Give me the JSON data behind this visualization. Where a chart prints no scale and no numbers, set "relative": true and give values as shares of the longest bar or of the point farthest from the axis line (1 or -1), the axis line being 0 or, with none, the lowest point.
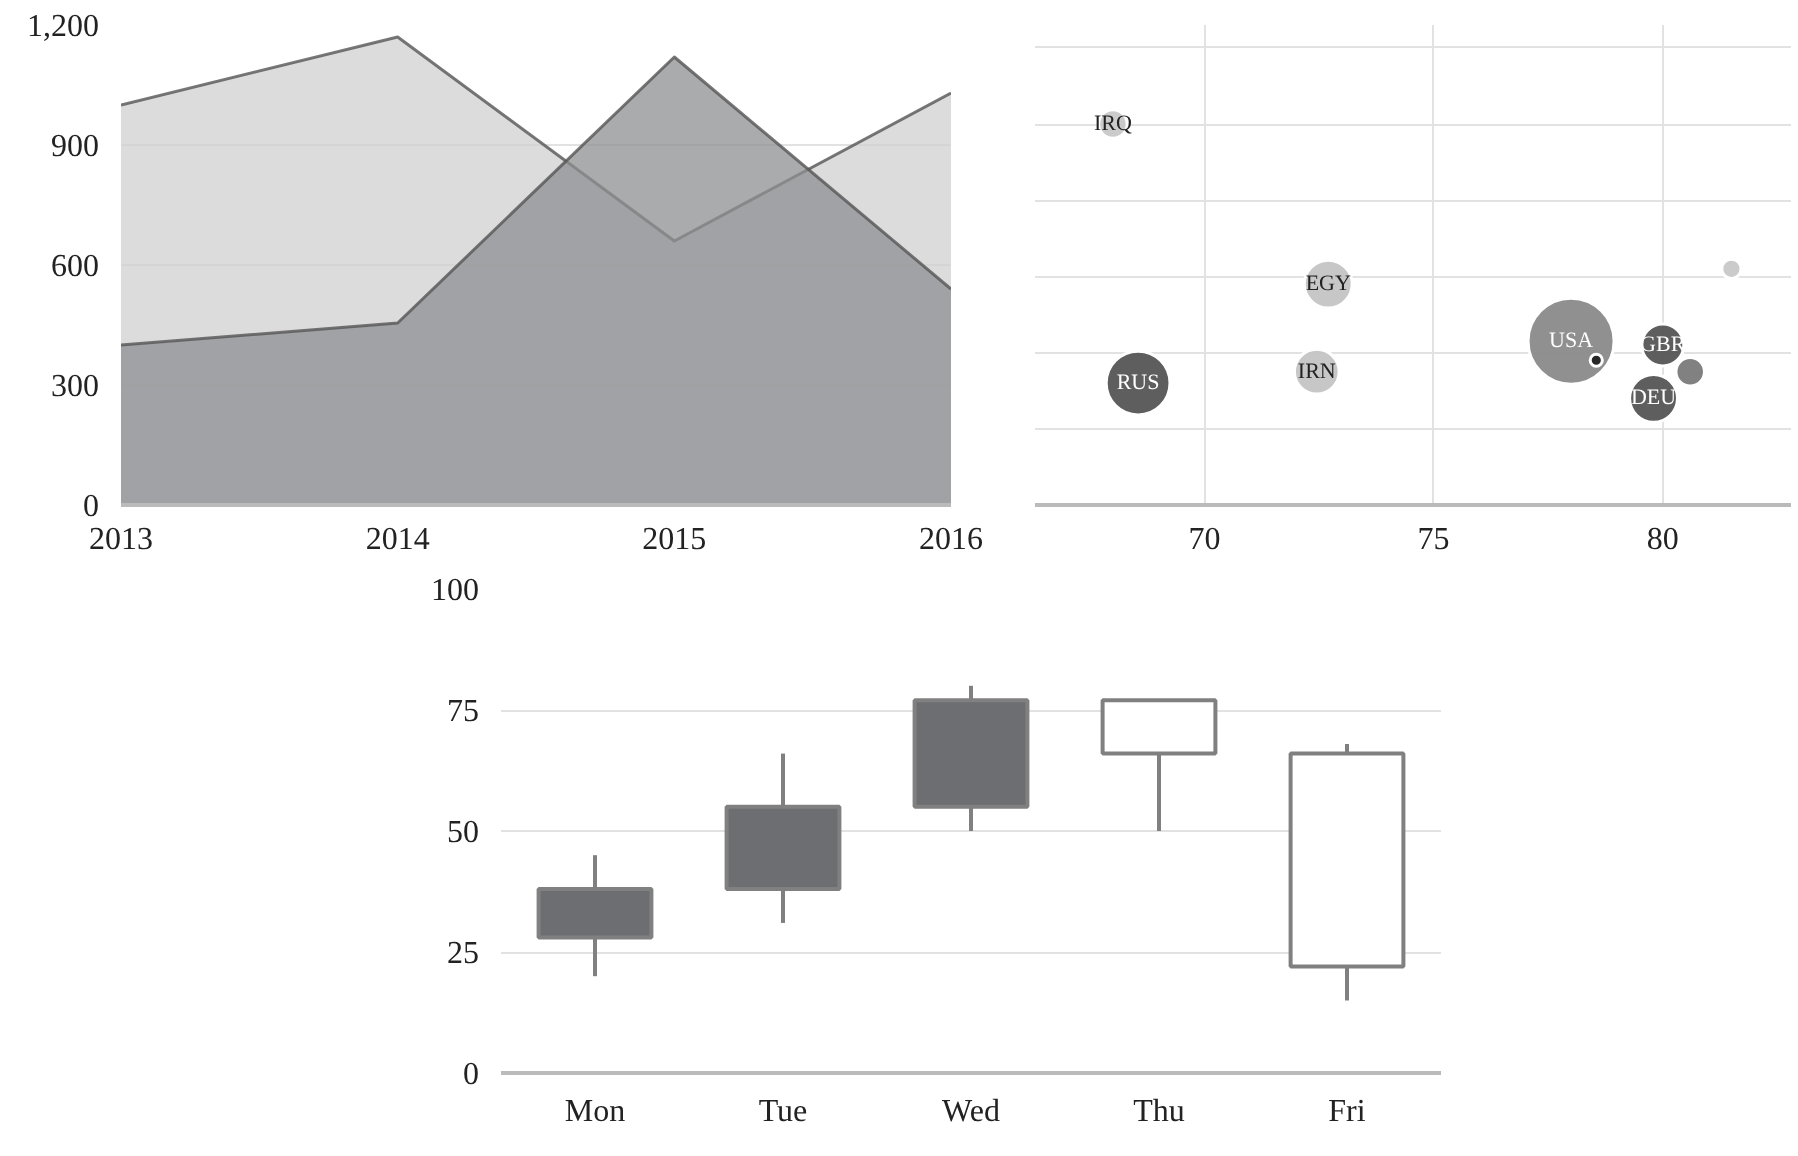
{
  "chart_data": [
    {
      "type": "area",
      "x": [
        2013,
        2014,
        2015,
        2016
      ],
      "xlim": [
        2013,
        2016
      ],
      "xticks": [
        2013,
        2014,
        2015,
        2016
      ],
      "ylim": [
        0,
        1200
      ],
      "yticks": [
        0,
        300,
        600,
        900,
        {
          "value": 1200,
          "label": "1,200"
        }
      ],
      "grid": "y",
      "series": [
        {
          "color": "#d0d0d2",
          "values": [
            1000,
            1170,
            660,
            1030
          ]
        },
        {
          "color": "#8e8f92",
          "values": [
            400,
            455,
            1120,
            540
          ]
        }
      ]
    },
    {
      "type": "bubble",
      "relative": true,
      "x": [
        68.0,
        72.7,
        68.55,
        72.45,
        78.0,
        78.55,
        80.0,
        80.6,
        79.8,
        81.5
      ],
      "values": [
        1.0,
        0.58,
        0.32,
        0.35,
        0.43,
        0.38,
        0.42,
        0.35,
        0.28,
        0.62
      ],
      "sizes": [
        0.11,
        0.31,
        0.55,
        0.27,
        1.0,
        0.02,
        0.24,
        0.11,
        0.31,
        0.05
      ],
      "colors": [
        "#c8c8c8",
        "#c4c4c4",
        "#555555",
        "#c4c4c4",
        "#8a8a8a",
        "#222222",
        "#555555",
        "#7a7a7a",
        "#555555",
        "#c8c8c8"
      ],
      "xlim": [
        66.3,
        82.8
      ],
      "xticks": [
        70,
        75,
        80
      ],
      "grid": true,
      "tick_labels": "x",
      "annotations": [
        {
          "text": "IRQ",
          "x": 68.0,
          "y": 1.0
        },
        {
          "text": "EGY",
          "x": 72.7,
          "y": 0.58
        },
        {
          "text": "RUS",
          "x": 68.55,
          "y": 0.32
        },
        {
          "text": "IRN",
          "x": 72.45,
          "y": 0.35
        },
        {
          "text": "USA",
          "x": 78.0,
          "y": 0.43
        },
        {
          "text": "GBR",
          "x": 80.0,
          "y": 0.42
        },
        {
          "text": "DEU",
          "x": 79.8,
          "y": 0.28
        }
      ]
    },
    {
      "type": "candlestick",
      "categories": [
        "Mon",
        "Tue",
        "Wed",
        "Thu",
        "Fri"
      ],
      "ylim": [
        0,
        100
      ],
      "yticks": [
        0,
        25,
        50,
        75,
        100
      ],
      "grid": "y",
      "ohlc": [
        [
          28,
          45,
          20,
          38
        ],
        [
          38,
          66,
          31,
          55
        ],
        [
          55,
          80,
          50,
          77
        ],
        [
          77,
          77,
          50,
          66
        ],
        [
          66,
          68,
          15,
          22
        ]
      ],
      "colors": [
        "#6d6e71",
        "#6d6e71",
        "#6d6e71",
        "#ffffff",
        "#ffffff"
      ]
    }
  ]
}
